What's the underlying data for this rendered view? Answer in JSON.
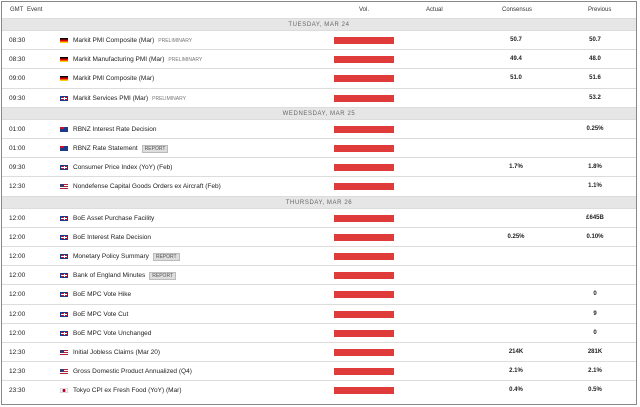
{
  "header": {
    "gmt": "GMT",
    "event": "Event",
    "vol": "Vol.",
    "actual": "Actual",
    "consensus": "Consensus",
    "previous": "Previous"
  },
  "days": [
    {
      "label": "TUESDAY, MAR 24",
      "events": [
        {
          "time": "08:30",
          "flag": "de",
          "name": "Markit PMI Composite (Mar)",
          "tag": "PRELIMINARY",
          "consensus": "50.7",
          "previous": "50.7"
        },
        {
          "time": "08:30",
          "flag": "de",
          "name": "Markit Manufacturing PMI (Mar)",
          "tag": "PRELIMINARY",
          "consensus": "49.4",
          "previous": "48.0"
        },
        {
          "time": "09:00",
          "flag": "de",
          "name": "Markit PMI Composite (Mar)",
          "consensus": "51.0",
          "previous": "51.6"
        },
        {
          "time": "09:30",
          "flag": "uk",
          "name": "Markit Services PMI (Mar)",
          "tag": "PRELIMINARY",
          "previous": "53.2"
        }
      ]
    },
    {
      "label": "WEDNESDAY, MAR 25",
      "events": [
        {
          "time": "01:00",
          "flag": "nz",
          "name": "RBNZ Interest Rate Decision",
          "previous": "0.25%"
        },
        {
          "time": "01:00",
          "flag": "nz",
          "name": "RBNZ Rate Statement",
          "report": "REPORT"
        },
        {
          "time": "09:30",
          "flag": "uk",
          "name": "Consumer Price Index (YoY) (Feb)",
          "consensus": "1.7%",
          "previous": "1.8%"
        },
        {
          "time": "12:30",
          "flag": "us",
          "name": "Nondefense Capital Goods Orders ex Aircraft (Feb)",
          "previous": "1.1%"
        }
      ]
    },
    {
      "label": "THURSDAY, MAR 26",
      "events": [
        {
          "time": "12:00",
          "flag": "uk",
          "name": "BoE Asset Purchase Facility",
          "previous": "£645B"
        },
        {
          "time": "12:00",
          "flag": "uk",
          "name": "BoE Interest Rate Decision",
          "consensus": "0.25%",
          "previous": "0.10%"
        },
        {
          "time": "12:00",
          "flag": "uk",
          "name": "Monetary Policy Summary",
          "report": "REPORT"
        },
        {
          "time": "12:00",
          "flag": "uk",
          "name": "Bank of England Minutes",
          "report": "REPORT"
        },
        {
          "time": "12:00",
          "flag": "uk",
          "name": "BoE MPC Vote Hike",
          "previous": "0"
        },
        {
          "time": "12:00",
          "flag": "uk",
          "name": "BoE MPC Vote Cut",
          "previous": "9"
        },
        {
          "time": "12:00",
          "flag": "uk",
          "name": "BoE MPC Vote Unchanged",
          "previous": "0"
        },
        {
          "time": "12:30",
          "flag": "us",
          "name": "Initial Jobless Claims (Mar 20)",
          "consensus": "214K",
          "previous": "281K"
        },
        {
          "time": "12:30",
          "flag": "us",
          "name": "Gross Domestic Product Annualized (Q4)",
          "consensus": "2.1%",
          "previous": "2.1%"
        },
        {
          "time": "23:30",
          "flag": "jp",
          "name": "Tokyo CPI ex Fresh Food (YoY) (Mar)",
          "consensus": "0.4%",
          "previous": "0.5%"
        }
      ]
    }
  ]
}
